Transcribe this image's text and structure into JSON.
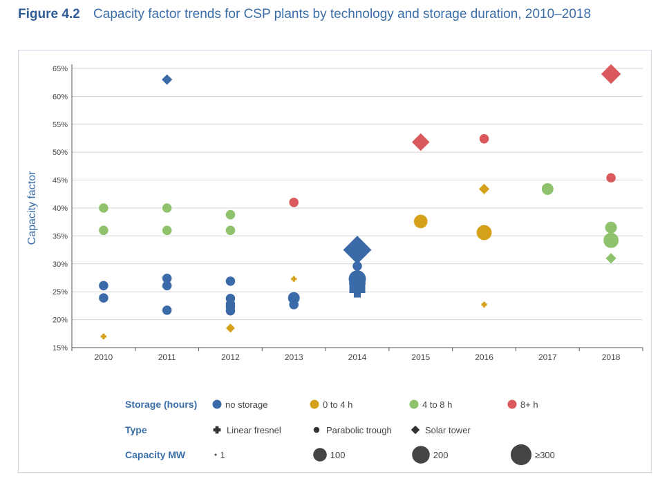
{
  "figure": {
    "number": "Figure 4.2",
    "title": "Capacity factor trends for CSP plants by technology and storage duration, 2010–2018"
  },
  "chart_data": {
    "type": "scatter",
    "ylabel": "Capacity factor",
    "xlabel": "",
    "ylim": [
      15,
      65
    ],
    "ytick_labels": [
      "15%",
      "20%",
      "25%",
      "30%",
      "35%",
      "40%",
      "45%",
      "50%",
      "55%",
      "60%",
      "65%"
    ],
    "categories": [
      "2010",
      "2011",
      "2012",
      "2013",
      "2014",
      "2015",
      "2016",
      "2017",
      "2018"
    ],
    "grid": true,
    "colors": {
      "no storage": "#3b6aa8",
      "0 to 4 h": "#d6a11a",
      "4 to 8 h": "#8fc26d",
      "8+ h": "#d9595c"
    },
    "points": [
      {
        "year": "2010",
        "cf": 40.0,
        "storage": "4 to 8 h",
        "type": "Parabolic trough",
        "mw": 50
      },
      {
        "year": "2010",
        "cf": 36.0,
        "storage": "4 to 8 h",
        "type": "Parabolic trough",
        "mw": 50
      },
      {
        "year": "2010",
        "cf": 26.1,
        "storage": "no storage",
        "type": "Parabolic trough",
        "mw": 50
      },
      {
        "year": "2010",
        "cf": 23.9,
        "storage": "no storage",
        "type": "Parabolic trough",
        "mw": 50
      },
      {
        "year": "2010",
        "cf": 17.0,
        "storage": "0 to 4 h",
        "type": "Linear fresnel",
        "mw": 1
      },
      {
        "year": "2011",
        "cf": 63.0,
        "storage": "no storage",
        "type": "Solar tower",
        "mw": 20
      },
      {
        "year": "2011",
        "cf": 40.0,
        "storage": "4 to 8 h",
        "type": "Parabolic trough",
        "mw": 50
      },
      {
        "year": "2011",
        "cf": 36.0,
        "storage": "4 to 8 h",
        "type": "Parabolic trough",
        "mw": 50
      },
      {
        "year": "2011",
        "cf": 27.4,
        "storage": "no storage",
        "type": "Parabolic trough",
        "mw": 50
      },
      {
        "year": "2011",
        "cf": 26.1,
        "storage": "no storage",
        "type": "Parabolic trough",
        "mw": 50
      },
      {
        "year": "2011",
        "cf": 21.7,
        "storage": "no storage",
        "type": "Parabolic trough",
        "mw": 50
      },
      {
        "year": "2012",
        "cf": 38.8,
        "storage": "4 to 8 h",
        "type": "Parabolic trough",
        "mw": 50
      },
      {
        "year": "2012",
        "cf": 36.0,
        "storage": "4 to 8 h",
        "type": "Parabolic trough",
        "mw": 50
      },
      {
        "year": "2012",
        "cf": 26.9,
        "storage": "no storage",
        "type": "Parabolic trough",
        "mw": 50
      },
      {
        "year": "2012",
        "cf": 23.8,
        "storage": "no storage",
        "type": "Parabolic trough",
        "mw": 50
      },
      {
        "year": "2012",
        "cf": 22.8,
        "storage": "no storage",
        "type": "Parabolic trough",
        "mw": 50
      },
      {
        "year": "2012",
        "cf": 22.3,
        "storage": "no storage",
        "type": "Parabolic trough",
        "mw": 50
      },
      {
        "year": "2012",
        "cf": 21.6,
        "storage": "no storage",
        "type": "Parabolic trough",
        "mw": 50
      },
      {
        "year": "2012",
        "cf": 18.5,
        "storage": "0 to 4 h",
        "type": "Solar tower",
        "mw": 10
      },
      {
        "year": "2013",
        "cf": 41.0,
        "storage": "8+ h",
        "type": "Parabolic trough",
        "mw": 50
      },
      {
        "year": "2013",
        "cf": 27.3,
        "storage": "0 to 4 h",
        "type": "Linear fresnel",
        "mw": 1
      },
      {
        "year": "2013",
        "cf": 23.9,
        "storage": "no storage",
        "type": "Parabolic trough",
        "mw": 100
      },
      {
        "year": "2013",
        "cf": 22.7,
        "storage": "no storage",
        "type": "Parabolic trough",
        "mw": 50
      },
      {
        "year": "2014",
        "cf": 32.5,
        "storage": "no storage",
        "type": "Solar tower",
        "mw": 380
      },
      {
        "year": "2014",
        "cf": 29.6,
        "storage": "no storage",
        "type": "Parabolic trough",
        "mw": 50
      },
      {
        "year": "2014",
        "cf": 27.3,
        "storage": "no storage",
        "type": "Parabolic trough",
        "mw": 280
      },
      {
        "year": "2014",
        "cf": 26.5,
        "storage": "no storage",
        "type": "Parabolic trough",
        "mw": 250
      },
      {
        "year": "2014",
        "cf": 25.4,
        "storage": "no storage",
        "type": "Linear fresnel",
        "mw": 125
      },
      {
        "year": "2015",
        "cf": 51.8,
        "storage": "8+ h",
        "type": "Solar tower",
        "mw": 110
      },
      {
        "year": "2015",
        "cf": 37.6,
        "storage": "0 to 4 h",
        "type": "Parabolic trough",
        "mw": 150
      },
      {
        "year": "2016",
        "cf": 52.4,
        "storage": "8+ h",
        "type": "Parabolic trough",
        "mw": 50
      },
      {
        "year": "2016",
        "cf": 43.4,
        "storage": "0 to 4 h",
        "type": "Solar tower",
        "mw": 20
      },
      {
        "year": "2016",
        "cf": 35.6,
        "storage": "0 to 4 h",
        "type": "Parabolic trough",
        "mw": 200
      },
      {
        "year": "2016",
        "cf": 22.7,
        "storage": "0 to 4 h",
        "type": "Linear fresnel",
        "mw": 1
      },
      {
        "year": "2017",
        "cf": 43.4,
        "storage": "4 to 8 h",
        "type": "Parabolic trough",
        "mw": 100
      },
      {
        "year": "2018",
        "cf": 64.0,
        "storage": "8+ h",
        "type": "Solar tower",
        "mw": 150
      },
      {
        "year": "2018",
        "cf": 45.4,
        "storage": "8+ h",
        "type": "Parabolic trough",
        "mw": 50
      },
      {
        "year": "2018",
        "cf": 36.5,
        "storage": "4 to 8 h",
        "type": "Parabolic trough",
        "mw": 100
      },
      {
        "year": "2018",
        "cf": 34.2,
        "storage": "4 to 8 h",
        "type": "Parabolic trough",
        "mw": 200
      },
      {
        "year": "2018",
        "cf": 31.0,
        "storage": "4 to 8 h",
        "type": "Solar tower",
        "mw": 20
      }
    ],
    "legend": {
      "storage": {
        "label": "Storage (hours)",
        "items": [
          "no storage",
          "0 to 4 h",
          "4 to 8 h",
          "8+ h"
        ]
      },
      "type": {
        "label": "Type",
        "items": [
          "Linear fresnel",
          "Parabolic trough",
          "Solar tower"
        ]
      },
      "capacity": {
        "label": "Capacity MW",
        "items": [
          "1",
          "100",
          "200",
          "≥300"
        ],
        "mw": [
          1,
          100,
          200,
          300
        ]
      }
    }
  }
}
